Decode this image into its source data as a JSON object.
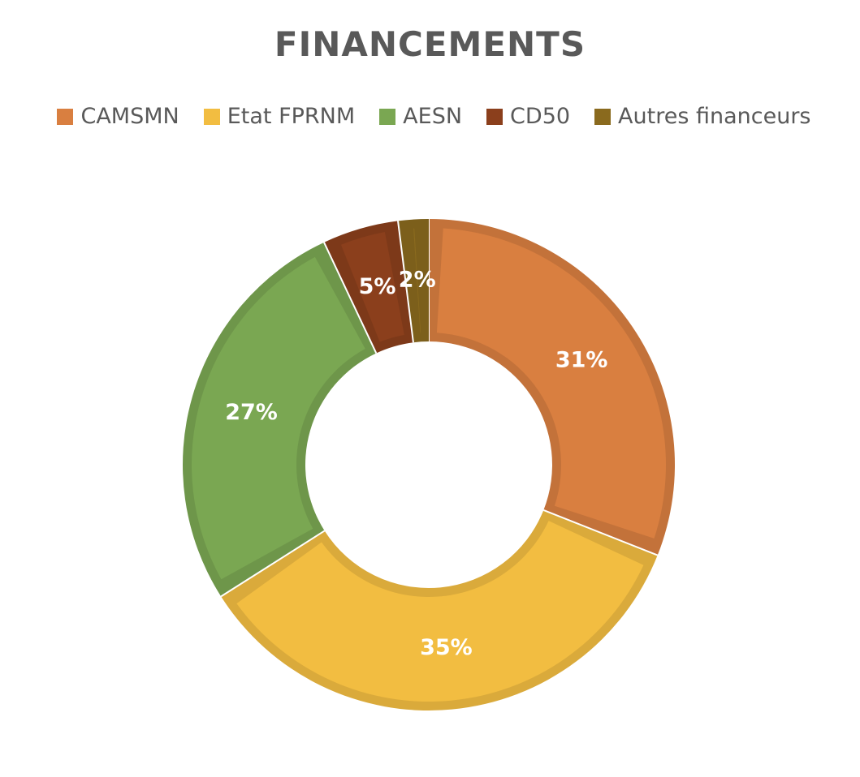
{
  "chart_data": {
    "type": "pie",
    "style": "doughnut",
    "title": "FINANCEMENTS",
    "categories": [
      "CAMSMN",
      "Etat FPRNM",
      "AESN",
      "CD50",
      "Autres financeurs"
    ],
    "values": [
      31,
      35,
      27,
      5,
      2
    ],
    "data_labels": [
      "31%",
      "35%",
      "27%",
      "5%",
      "2%"
    ],
    "colors": [
      "#D97F40",
      "#F2BD41",
      "#7AA752",
      "#8B3F1C",
      "#8A6A1E"
    ],
    "legend_position": "top",
    "grid": false
  }
}
